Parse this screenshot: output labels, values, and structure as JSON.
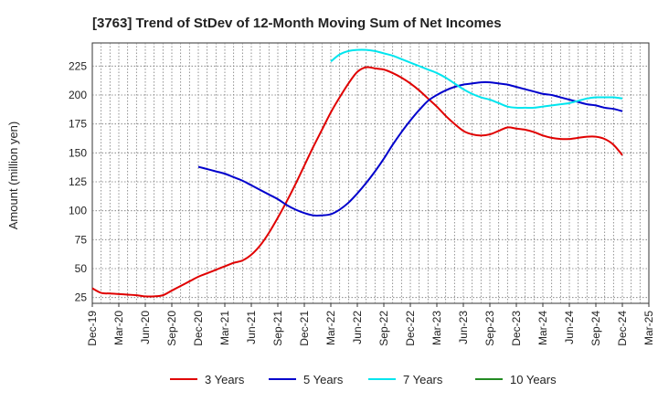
{
  "chart_data": {
    "type": "line",
    "title": "[3763]  Trend of StDev of 12-Month Moving Sum of Net Incomes",
    "ylabel": "Amount (million yen)",
    "xlabel": "",
    "ylim": [
      20,
      245
    ],
    "yticks": [
      25,
      50,
      75,
      100,
      125,
      150,
      175,
      200,
      225
    ],
    "xticks": [
      "Dec-19",
      "Mar-20",
      "Jun-20",
      "Sep-20",
      "Dec-20",
      "Mar-21",
      "Jun-21",
      "Sep-21",
      "Dec-21",
      "Mar-22",
      "Jun-22",
      "Sep-22",
      "Dec-22",
      "Mar-23",
      "Jun-23",
      "Sep-23",
      "Dec-23",
      "Mar-24",
      "Jun-24",
      "Sep-24",
      "Dec-24",
      "Mar-25"
    ],
    "grid": true,
    "legend_position": "bottom",
    "series": [
      {
        "name": "3 Years",
        "color": "#e00000",
        "x": [
          "Dec-19",
          "Jan-20",
          "Feb-20",
          "Mar-20",
          "Apr-20",
          "May-20",
          "Jun-20",
          "Jul-20",
          "Aug-20",
          "Sep-20",
          "Oct-20",
          "Nov-20",
          "Dec-20",
          "Jan-21",
          "Feb-21",
          "Mar-21",
          "Apr-21",
          "May-21",
          "Jun-21",
          "Jul-21",
          "Aug-21",
          "Sep-21",
          "Oct-21",
          "Nov-21",
          "Dec-21",
          "Jan-22",
          "Feb-22",
          "Mar-22",
          "Apr-22",
          "May-22",
          "Jun-22",
          "Jul-22",
          "Aug-22",
          "Sep-22",
          "Oct-22",
          "Nov-22",
          "Dec-22",
          "Jan-23",
          "Feb-23",
          "Mar-23",
          "Apr-23",
          "May-23",
          "Jun-23",
          "Jul-23",
          "Aug-23",
          "Sep-23",
          "Oct-23",
          "Nov-23",
          "Dec-23",
          "Jan-24",
          "Feb-24",
          "Mar-24",
          "Apr-24",
          "May-24",
          "Jun-24",
          "Jul-24",
          "Aug-24",
          "Sep-24",
          "Oct-24",
          "Nov-24",
          "Dec-24"
        ],
        "values": [
          33,
          29,
          28.5,
          28,
          27.5,
          27,
          26,
          26,
          27,
          31,
          35,
          39,
          43,
          46,
          49,
          52,
          55,
          57,
          62,
          70,
          81,
          94,
          108,
          123,
          139,
          155,
          170,
          185,
          198,
          210,
          220,
          224,
          223,
          222,
          219,
          215,
          210,
          204,
          197,
          190,
          182,
          175,
          169,
          166,
          165,
          166,
          169,
          172,
          171,
          170,
          168,
          165,
          163,
          162,
          162,
          163,
          164,
          164,
          162,
          157,
          148
        ]
      },
      {
        "name": "5 Years",
        "color": "#0000cc",
        "x": [
          "Dec-20",
          "Jan-21",
          "Feb-21",
          "Mar-21",
          "Apr-21",
          "May-21",
          "Jun-21",
          "Jul-21",
          "Aug-21",
          "Sep-21",
          "Oct-21",
          "Nov-21",
          "Dec-21",
          "Jan-22",
          "Feb-22",
          "Mar-22",
          "Apr-22",
          "May-22",
          "Jun-22",
          "Jul-22",
          "Aug-22",
          "Sep-22",
          "Oct-22",
          "Nov-22",
          "Dec-22",
          "Jan-23",
          "Feb-23",
          "Mar-23",
          "Apr-23",
          "May-23",
          "Jun-23",
          "Jul-23",
          "Aug-23",
          "Sep-23",
          "Oct-23",
          "Nov-23",
          "Dec-23",
          "Jan-24",
          "Feb-24",
          "Mar-24",
          "Apr-24",
          "May-24",
          "Jun-24",
          "Jul-24",
          "Aug-24",
          "Sep-24",
          "Oct-24",
          "Nov-24",
          "Dec-24"
        ],
        "values": [
          138,
          136,
          134,
          132,
          129,
          126,
          122,
          118,
          114,
          110,
          105,
          101,
          98,
          96,
          96,
          97,
          101,
          107,
          115,
          124,
          134,
          145,
          157,
          168,
          178,
          187,
          195,
          200,
          204,
          207,
          209,
          210,
          211,
          211,
          210,
          209,
          207,
          205,
          203,
          201,
          200,
          198,
          196,
          194,
          192,
          191,
          189,
          188,
          186
        ],
        "x_offset_note": ""
      },
      {
        "name": "7 Years",
        "color": "#00e5ee",
        "x": [
          "Mar-22",
          "Apr-22",
          "May-22",
          "Jun-22",
          "Jul-22",
          "Aug-22",
          "Sep-22",
          "Oct-22",
          "Nov-22",
          "Dec-22",
          "Jan-23",
          "Feb-23",
          "Mar-23",
          "Apr-23",
          "May-23",
          "Jun-23",
          "Jul-23",
          "Aug-23",
          "Sep-23",
          "Oct-23",
          "Nov-23",
          "Dec-23",
          "Jan-24",
          "Feb-24",
          "Mar-24",
          "Apr-24",
          "May-24",
          "Jun-24",
          "Jul-24",
          "Aug-24",
          "Sep-24",
          "Oct-24",
          "Nov-24",
          "Dec-24"
        ],
        "values": [
          229,
          235,
          238,
          239,
          239,
          238,
          236,
          234,
          231,
          228,
          225,
          222,
          219,
          215,
          210,
          205,
          201,
          198,
          196,
          193,
          190,
          189,
          189,
          189,
          190,
          191,
          192,
          193,
          195,
          197,
          198,
          198,
          198,
          197
        ]
      },
      {
        "name": "10 Years",
        "color": "#228b22",
        "x": [],
        "values": []
      }
    ]
  }
}
